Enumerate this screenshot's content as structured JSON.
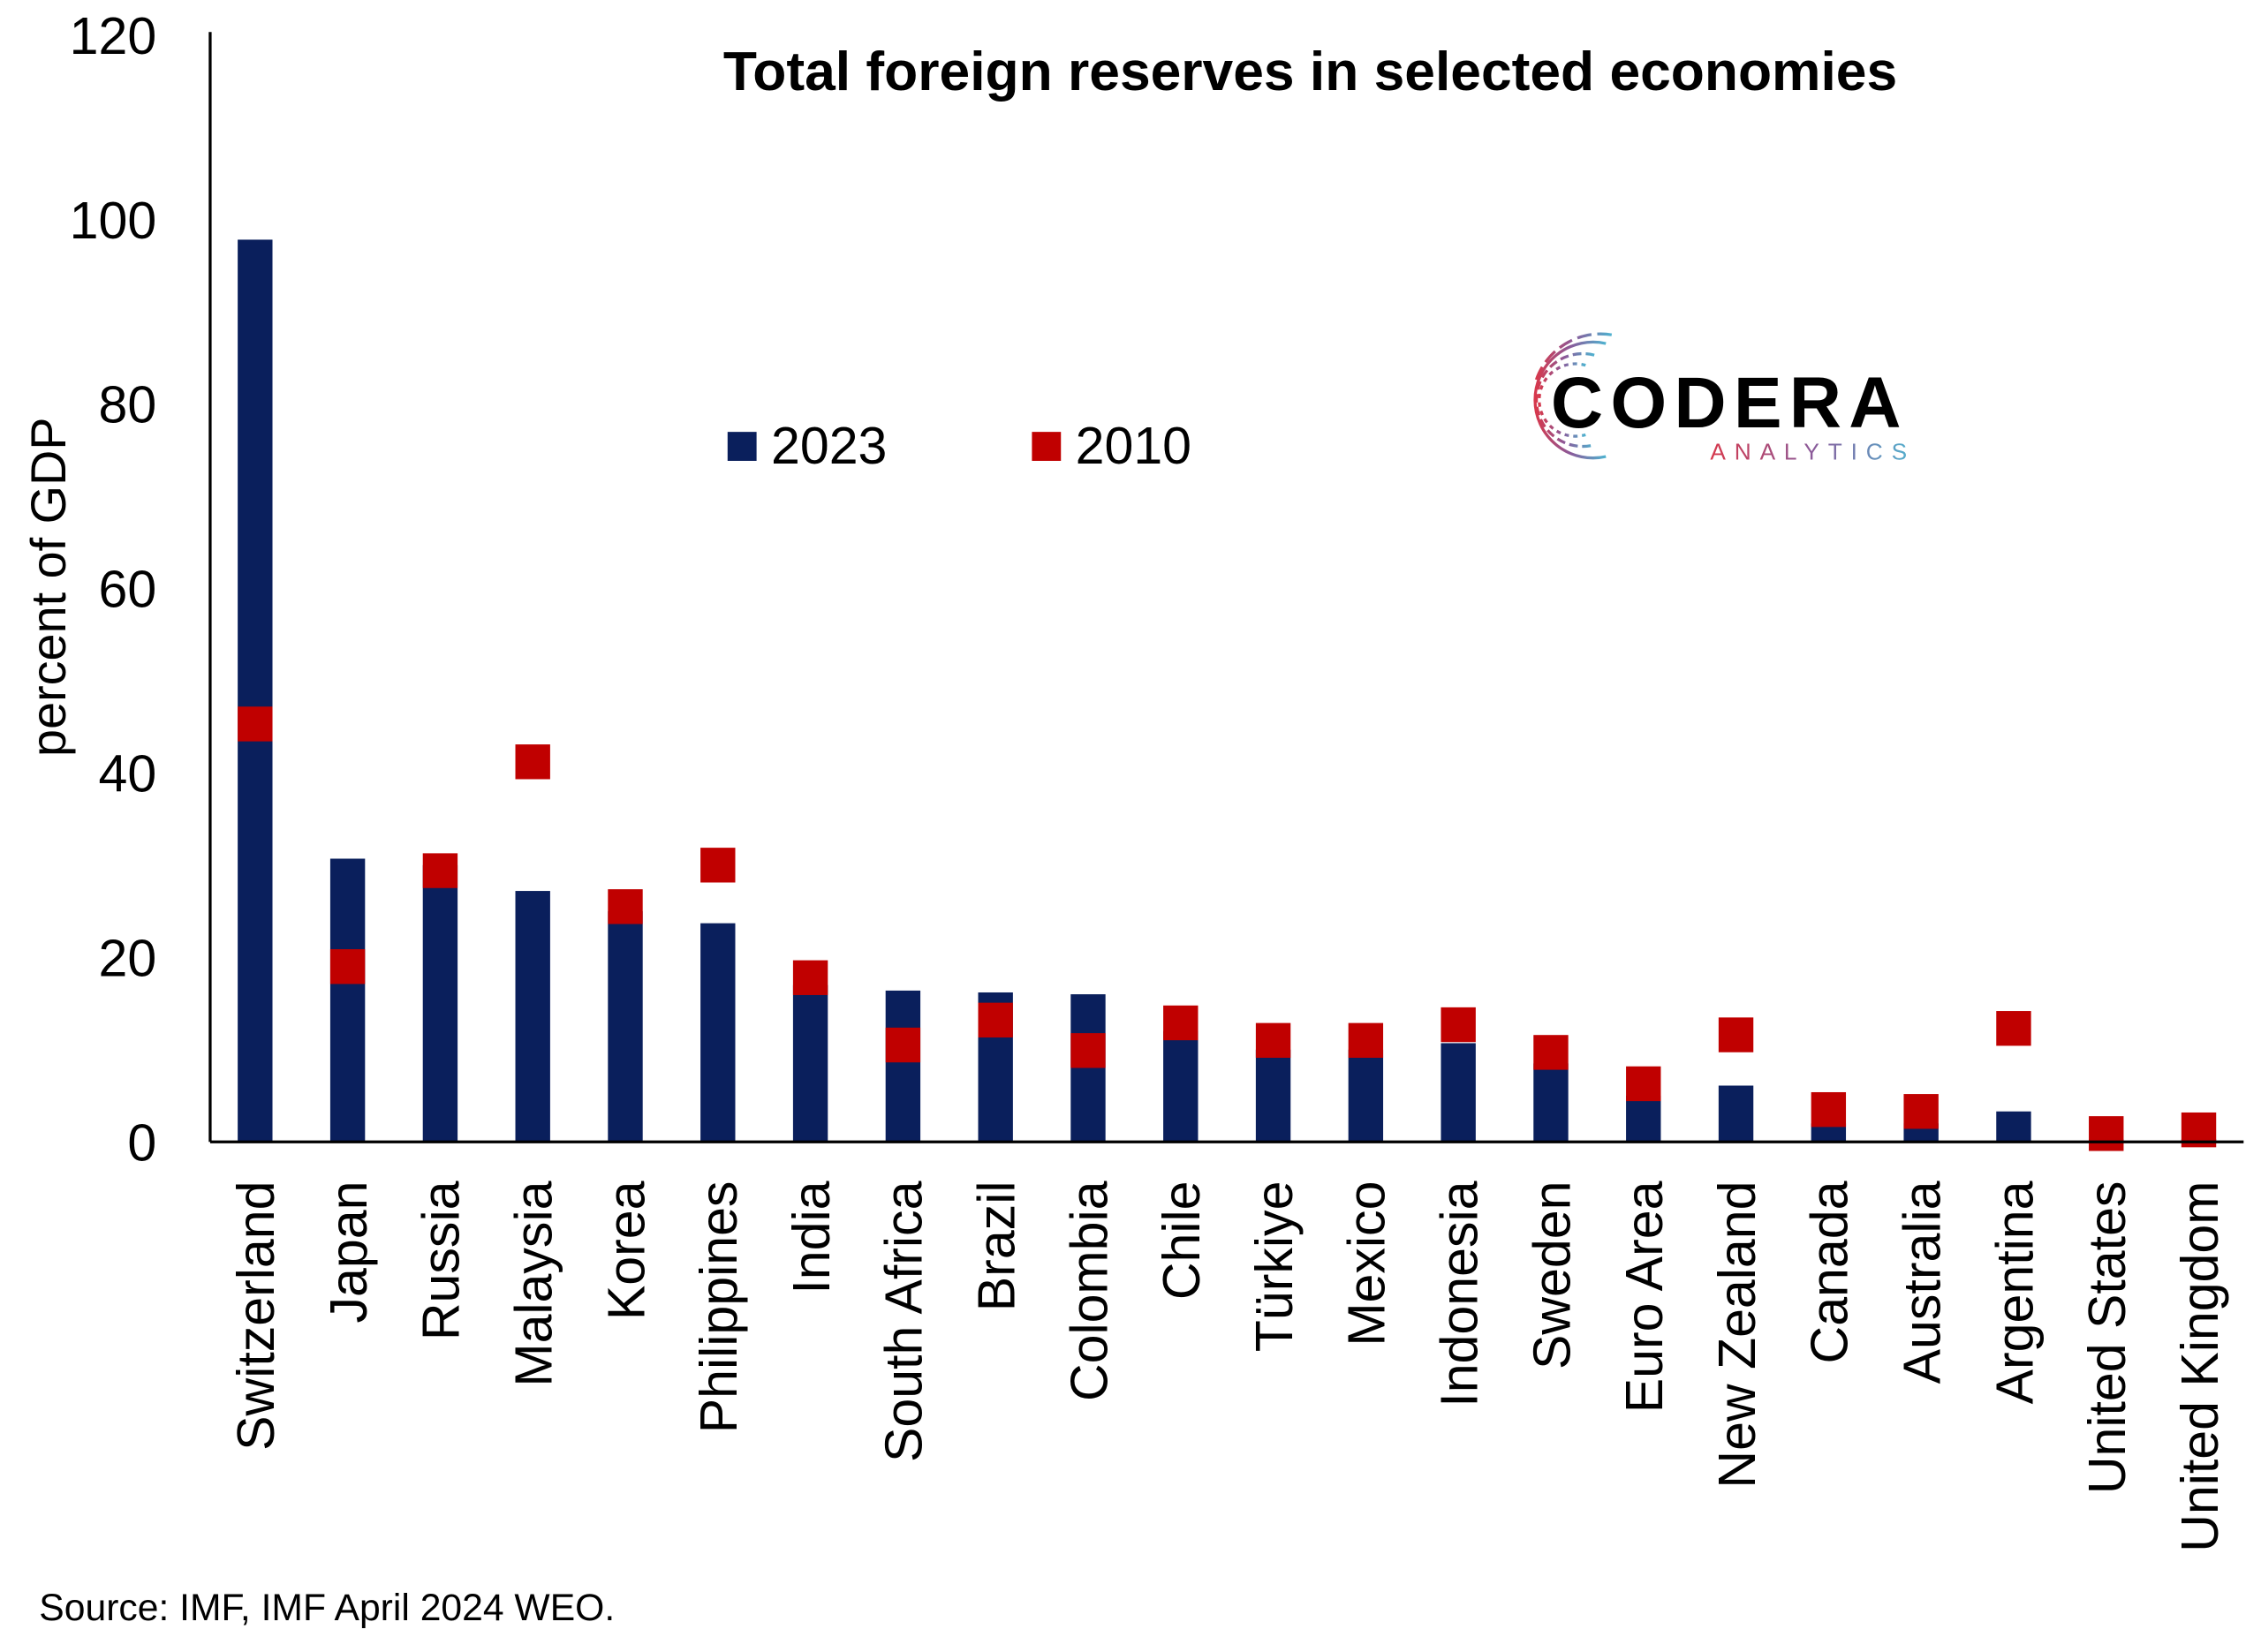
{
  "chart_data": {
    "type": "bar",
    "title": "Total foreign reserves in selected economies",
    "ylabel": "percent of GDP",
    "xlabel": "",
    "ylim": [
      0,
      120
    ],
    "yticks": [
      "0",
      "20",
      "40",
      "60",
      "80",
      "100",
      "120"
    ],
    "grid": false,
    "legend_placement": "top-center",
    "categories": [
      "Switzerland",
      "Japan",
      "Russia",
      "Malaysia",
      "Korea",
      "Philippines",
      "India",
      "South Africa",
      "Brazil",
      "Colombia",
      "Chile",
      "Türkiye",
      "Mexico",
      "Indonesia",
      "Sweden",
      "Euro Area",
      "New Zealand",
      "Canada",
      "Australia",
      "Argentina",
      "United States",
      "United Kingdom"
    ],
    "series": [
      {
        "name": "2023",
        "kind": "bar",
        "color": "#0a1f5c",
        "values": [
          97.8,
          30.7,
          30,
          27.2,
          25,
          23.7,
          17,
          16.4,
          16.2,
          16,
          12,
          10,
          10,
          10.7,
          8.5,
          5,
          6.1,
          2,
          2,
          3.3,
          0.3,
          0.3
        ]
      },
      {
        "name": "2010",
        "kind": "marker",
        "color": "#c00000",
        "values": [
          45.3,
          19,
          29.4,
          41.2,
          25.5,
          30,
          17.8,
          10.5,
          13.2,
          9.9,
          12.9,
          11,
          11,
          12.7,
          9.7,
          6.3,
          11.6,
          3.5,
          3.3,
          12.3,
          0.9,
          1.3
        ]
      }
    ],
    "source": "Source: IMF, IMF April 2024 WEO."
  },
  "logo": {
    "name": "CODERA",
    "sub": "ANALYTICS"
  }
}
